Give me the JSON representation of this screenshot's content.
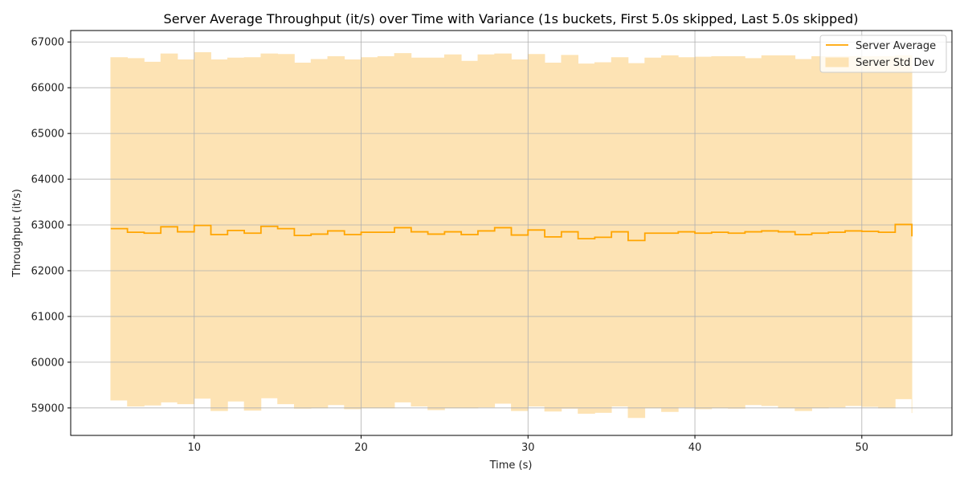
{
  "chart_data": {
    "type": "line",
    "title": "Server Average Throughput (it/s) over Time with Variance (1s buckets, First 5.0s skipped, Last 5.0s skipped)",
    "xlabel": "Time (s)",
    "ylabel": "Throughput (it/s)",
    "xlim": [
      2.6,
      55.4
    ],
    "ylim": [
      58400,
      67250
    ],
    "xticks": [
      10,
      20,
      30,
      40,
      50
    ],
    "yticks": [
      59000,
      60000,
      61000,
      62000,
      63000,
      64000,
      65000,
      66000,
      67000
    ],
    "grid": true,
    "legend_position": "top-right",
    "step": "post",
    "colors": {
      "line": "#ffa500",
      "band": "#fde3b4",
      "grid": "#b0b0b0"
    },
    "series": [
      {
        "name": "Server Average",
        "x": [
          5,
          6,
          7,
          8,
          9,
          10,
          11,
          12,
          13,
          14,
          15,
          16,
          17,
          18,
          19,
          20,
          21,
          22,
          23,
          24,
          25,
          26,
          27,
          28,
          29,
          30,
          31,
          32,
          33,
          34,
          35,
          36,
          37,
          38,
          39,
          40,
          41,
          42,
          43,
          44,
          45,
          46,
          47,
          48,
          49,
          50,
          51,
          52,
          53
        ],
        "values": [
          62920,
          62840,
          62820,
          62960,
          62850,
          62990,
          62790,
          62880,
          62820,
          62970,
          62920,
          62770,
          62800,
          62870,
          62790,
          62840,
          62840,
          62940,
          62850,
          62800,
          62850,
          62790,
          62870,
          62940,
          62780,
          62890,
          62740,
          62850,
          62700,
          62730,
          62850,
          62660,
          62820,
          62820,
          62850,
          62820,
          62840,
          62820,
          62850,
          62870,
          62850,
          62790,
          62820,
          62840,
          62870,
          62860,
          62840,
          63010,
          62750
        ]
      },
      {
        "name": "Server Std Dev",
        "x": [
          5,
          6,
          7,
          8,
          9,
          10,
          11,
          12,
          13,
          14,
          15,
          16,
          17,
          18,
          19,
          20,
          21,
          22,
          23,
          24,
          25,
          26,
          27,
          28,
          29,
          30,
          31,
          32,
          33,
          34,
          35,
          36,
          37,
          38,
          39,
          40,
          41,
          42,
          43,
          44,
          45,
          46,
          47,
          48,
          49,
          50,
          51,
          52,
          53
        ],
        "upper": [
          66660,
          66640,
          66560,
          66740,
          66610,
          66770,
          66610,
          66650,
          66660,
          66740,
          66730,
          66540,
          66620,
          66680,
          66610,
          66660,
          66680,
          66750,
          66650,
          66650,
          66720,
          66580,
          66720,
          66740,
          66610,
          66730,
          66540,
          66710,
          66520,
          66550,
          66660,
          66530,
          66650,
          66700,
          66660,
          66670,
          66680,
          66680,
          66640,
          66700,
          66700,
          66620,
          66680,
          66680,
          66680,
          66680,
          66680,
          66700,
          66700
        ],
        "lower": [
          59170,
          59040,
          59060,
          59130,
          59090,
          59210,
          58940,
          59150,
          58950,
          59220,
          59090,
          58990,
          59000,
          59070,
          58980,
          59000,
          59000,
          59130,
          59040,
          58960,
          59000,
          59000,
          59020,
          59100,
          58940,
          59040,
          58930,
          58990,
          58880,
          58900,
          59040,
          58790,
          59000,
          58920,
          59020,
          58980,
          59000,
          58990,
          59070,
          59050,
          59000,
          58940,
          59000,
          59020,
          59050,
          59030,
          59000,
          59200,
          58890
        ]
      }
    ]
  }
}
